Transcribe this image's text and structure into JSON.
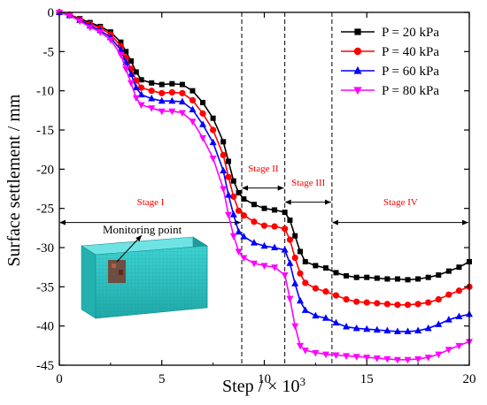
{
  "chart_data": {
    "type": "line",
    "title": "",
    "xlabel": "Step / × 10",
    "xlabel_sup": "3",
    "ylabel": "Surface settlement / mm",
    "xlim": [
      0,
      20
    ],
    "ylim": [
      -45,
      0
    ],
    "xticks": [
      "0",
      "5",
      "10",
      "15",
      "20"
    ],
    "yticks": [
      "0",
      "-5",
      "-10",
      "-15",
      "-20",
      "-25",
      "-30",
      "-35",
      "-40",
      "-45"
    ],
    "grid": false,
    "legend_position": "top-right",
    "x": [
      0,
      0.5,
      1,
      1.5,
      2,
      2.5,
      3,
      3.25,
      3.5,
      3.75,
      4,
      4.5,
      5,
      5.5,
      6,
      6.5,
      7,
      7.5,
      8,
      8.25,
      8.5,
      8.75,
      9,
      9.5,
      10,
      10.5,
      11,
      11.25,
      11.5,
      11.75,
      12,
      12.5,
      13,
      13.5,
      14,
      14.5,
      15,
      15.5,
      16,
      16.5,
      17,
      17.5,
      18,
      18.5,
      19,
      19.5,
      20
    ],
    "series": [
      {
        "name": "P = 20 kPa",
        "marker": "square",
        "color": "#000000",
        "values": [
          0,
          -0.3,
          -0.8,
          -1.3,
          -1.8,
          -2.5,
          -3.8,
          -5.0,
          -6.2,
          -7.6,
          -8.6,
          -9.0,
          -9.2,
          -9.1,
          -9.2,
          -10.0,
          -11.5,
          -13.5,
          -16.5,
          -19.0,
          -21.5,
          -23.0,
          -23.8,
          -24.5,
          -25.0,
          -25.2,
          -25.5,
          -26.5,
          -28.5,
          -30.5,
          -31.8,
          -32.3,
          -32.6,
          -33.2,
          -33.6,
          -33.8,
          -33.8,
          -33.9,
          -34.0,
          -34.0,
          -34.1,
          -34.0,
          -33.8,
          -33.5,
          -33.0,
          -32.5,
          -31.8
        ]
      },
      {
        "name": "P = 40 kPa",
        "marker": "circle",
        "color": "#ff0000",
        "values": [
          0,
          -0.3,
          -0.9,
          -1.5,
          -2.0,
          -2.8,
          -4.3,
          -5.8,
          -7.2,
          -8.7,
          -9.6,
          -10.0,
          -10.3,
          -10.2,
          -10.3,
          -11.2,
          -12.9,
          -15.0,
          -18.2,
          -21.0,
          -23.5,
          -25.3,
          -25.9,
          -26.7,
          -27.2,
          -27.3,
          -27.6,
          -29.0,
          -31.3,
          -33.3,
          -34.5,
          -35.2,
          -35.6,
          -36.1,
          -36.6,
          -36.9,
          -37.0,
          -37.1,
          -37.2,
          -37.3,
          -37.3,
          -37.2,
          -37.0,
          -36.6,
          -36.0,
          -35.5,
          -35.0
        ]
      },
      {
        "name": "P = 60 kPa",
        "marker": "triangle-up",
        "color": "#0000ff",
        "values": [
          0,
          -0.4,
          -1.0,
          -1.7,
          -2.3,
          -3.2,
          -4.8,
          -6.4,
          -7.9,
          -9.6,
          -10.5,
          -11.0,
          -11.3,
          -11.3,
          -11.4,
          -12.4,
          -14.3,
          -16.6,
          -20.2,
          -23.3,
          -25.8,
          -28.0,
          -28.6,
          -29.4,
          -29.8,
          -30.0,
          -30.3,
          -32.0,
          -34.6,
          -36.8,
          -38.0,
          -38.7,
          -39.0,
          -39.6,
          -40.1,
          -40.3,
          -40.4,
          -40.5,
          -40.6,
          -40.7,
          -40.7,
          -40.6,
          -40.3,
          -39.8,
          -39.2,
          -38.8,
          -38.5
        ]
      },
      {
        "name": "P = 80 kPa",
        "marker": "triangle-down",
        "color": "#ff00ff",
        "values": [
          0,
          -0.4,
          -1.1,
          -1.9,
          -2.5,
          -3.5,
          -5.4,
          -7.2,
          -9.0,
          -10.9,
          -11.8,
          -12.2,
          -12.6,
          -12.6,
          -12.8,
          -13.9,
          -16.0,
          -18.6,
          -22.5,
          -25.8,
          -28.5,
          -30.5,
          -31.3,
          -32.0,
          -32.3,
          -32.5,
          -33.5,
          -36.5,
          -40.0,
          -42.5,
          -43.1,
          -43.4,
          -43.6,
          -43.7,
          -43.8,
          -43.9,
          -44.0,
          -44.1,
          -44.2,
          -44.3,
          -44.3,
          -44.2,
          -44.0,
          -43.6,
          -43.0,
          -42.5,
          -42.0
        ]
      }
    ],
    "stage_boundaries": [
      8.9,
      11.0,
      13.3
    ],
    "stages": [
      {
        "label": "Stage I",
        "from": 0,
        "to": 8.9,
        "arrow_y": -26.8,
        "label_y": -24.6
      },
      {
        "label": "Stage II",
        "from": 8.9,
        "to": 11.0,
        "arrow_y": -22.4,
        "label_y": -20.3
      },
      {
        "label": "Stage III",
        "from": 11.0,
        "to": 13.3,
        "arrow_y": -24.2,
        "label_y": -22.1
      },
      {
        "label": "Stage IV",
        "from": 13.3,
        "to": 20,
        "arrow_y": -26.8,
        "label_y": -24.6
      }
    ],
    "stage_label_color": "#ff0000",
    "annotation": {
      "text": "Monitoring point"
    }
  }
}
